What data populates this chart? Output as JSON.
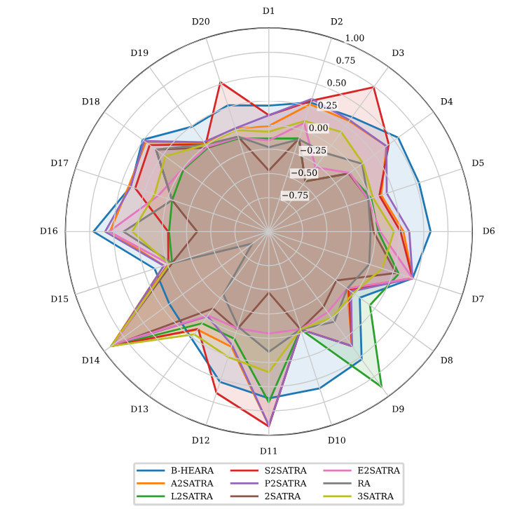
{
  "chart_data": {
    "type": "radar",
    "categories": [
      "D1",
      "D2",
      "D3",
      "D4",
      "D5",
      "D6",
      "D7",
      "D8",
      "D9",
      "D10",
      "D11",
      "D12",
      "D13",
      "D14",
      "D15",
      "D16",
      "D17",
      "D18",
      "D19",
      "D20"
    ],
    "ylim": [
      -1.1,
      1.0
    ],
    "yticks": [
      {
        "value": -0.75,
        "label": "−0.75"
      },
      {
        "value": -0.5,
        "label": "−0.50"
      },
      {
        "value": -0.25,
        "label": "−0.25"
      },
      {
        "value": 0,
        "label": "0.00"
      },
      {
        "value": 0.25,
        "label": "0.25"
      },
      {
        "value": 0.5,
        "label": "0.50"
      },
      {
        "value": 0.75,
        "label": "0.75"
      },
      {
        "value": 1.0,
        "label": "1.00"
      }
    ],
    "grid": true,
    "legend": "bottom",
    "series": [
      {
        "name": "B-HEARA",
        "color": "#1f77b4",
        "values": [
          0.2,
          0.3,
          0.36,
          0.55,
          0.53,
          0.57,
          0.46,
          0.06,
          0.53,
          0.6,
          0.62,
          0.53,
          0.26,
          0.17,
          0.14,
          0.71,
          0.4,
          0.51,
          0.24,
          0.27
        ]
      },
      {
        "name": "A2SATRA",
        "color": "#ff7f0e",
        "values": [
          -0.01,
          0.28,
          0.31,
          0.4,
          0.12,
          0.29,
          0.46,
          -0.1,
          0.36,
          -0.04,
          0.9,
          0.15,
          0.15,
          0.91,
          0.04,
          0.54,
          0.42,
          0.47,
          0.03,
          0.02
        ]
      },
      {
        "name": "L2SATRA",
        "color": "#2ca02c",
        "values": [
          -0.14,
          -0.09,
          -0.46,
          -0.08,
          0.01,
          0.03,
          0.31,
          0.19,
          0.88,
          -0.04,
          0.66,
          0.06,
          0.07,
          0.91,
          -0.05,
          -0.07,
          -0.05,
          -0.01,
          -0.03,
          -0.09
        ]
      },
      {
        "name": "S2SATRA",
        "color": "#d62728",
        "values": [
          0.1,
          0.32,
          0.74,
          0.43,
          0.1,
          0.26,
          0.46,
          -0.08,
          0.36,
          -0.04,
          0.91,
          0.65,
          0.14,
          0.91,
          -0.01,
          -0.06,
          0.35,
          0.42,
          0.01,
          0.52
        ]
      },
      {
        "name": "P2SATRA",
        "color": "#9467bd",
        "values": [
          0.1,
          0.34,
          0.32,
          0.4,
          0.18,
          0.35,
          0.46,
          -0.05,
          0.36,
          -0.04,
          0.9,
          0.13,
          -0.02,
          0.89,
          0.04,
          0.59,
          0.4,
          0.49,
          0.04,
          0.02
        ]
      },
      {
        "name": "2SATRA",
        "color": "#8c564b",
        "values": [
          -0.47,
          -0.09,
          -0.46,
          -0.08,
          -0.02,
          -0.02,
          0.28,
          -0.24,
          -0.14,
          -0.04,
          -0.47,
          -0.04,
          -0.12,
          0.91,
          -0.05,
          -0.36,
          -0.05,
          0.34,
          -0.03,
          -0.07
        ]
      },
      {
        "name": "E2SATRA",
        "color": "#e377c2",
        "values": [
          -0.16,
          0.08,
          -0.28,
          -0.07,
          -0.02,
          0.05,
          0.46,
          -0.1,
          -0.07,
          -0.04,
          -0.05,
          -0.05,
          -0.03,
          0.88,
          -0.02,
          0.55,
          0.1,
          0.0,
          -0.02,
          -0.08
        ]
      },
      {
        "name": "RA",
        "color": "#7f7f7f",
        "values": [
          -0.23,
          -0.1,
          -0.1,
          0.09,
          -0.02,
          -0.05,
          -0.01,
          -0.1,
          0.05,
          -0.04,
          0.14,
          -0.07,
          -0.3,
          -0.89,
          -0.05,
          0.4,
          -0.05,
          0.34,
          0.01,
          -0.07
        ]
      },
      {
        "name": "3SATRA",
        "color": "#bcbd22",
        "values": [
          -0.07,
          0.1,
          0.17,
          0.1,
          0.03,
          0.19,
          0.13,
          -0.02,
          0.0,
          -0.04,
          0.35,
          0.26,
          0.21,
          0.91,
          -0.02,
          0.31,
          0.14,
          0.22,
          0.01,
          0.0
        ]
      }
    ]
  }
}
